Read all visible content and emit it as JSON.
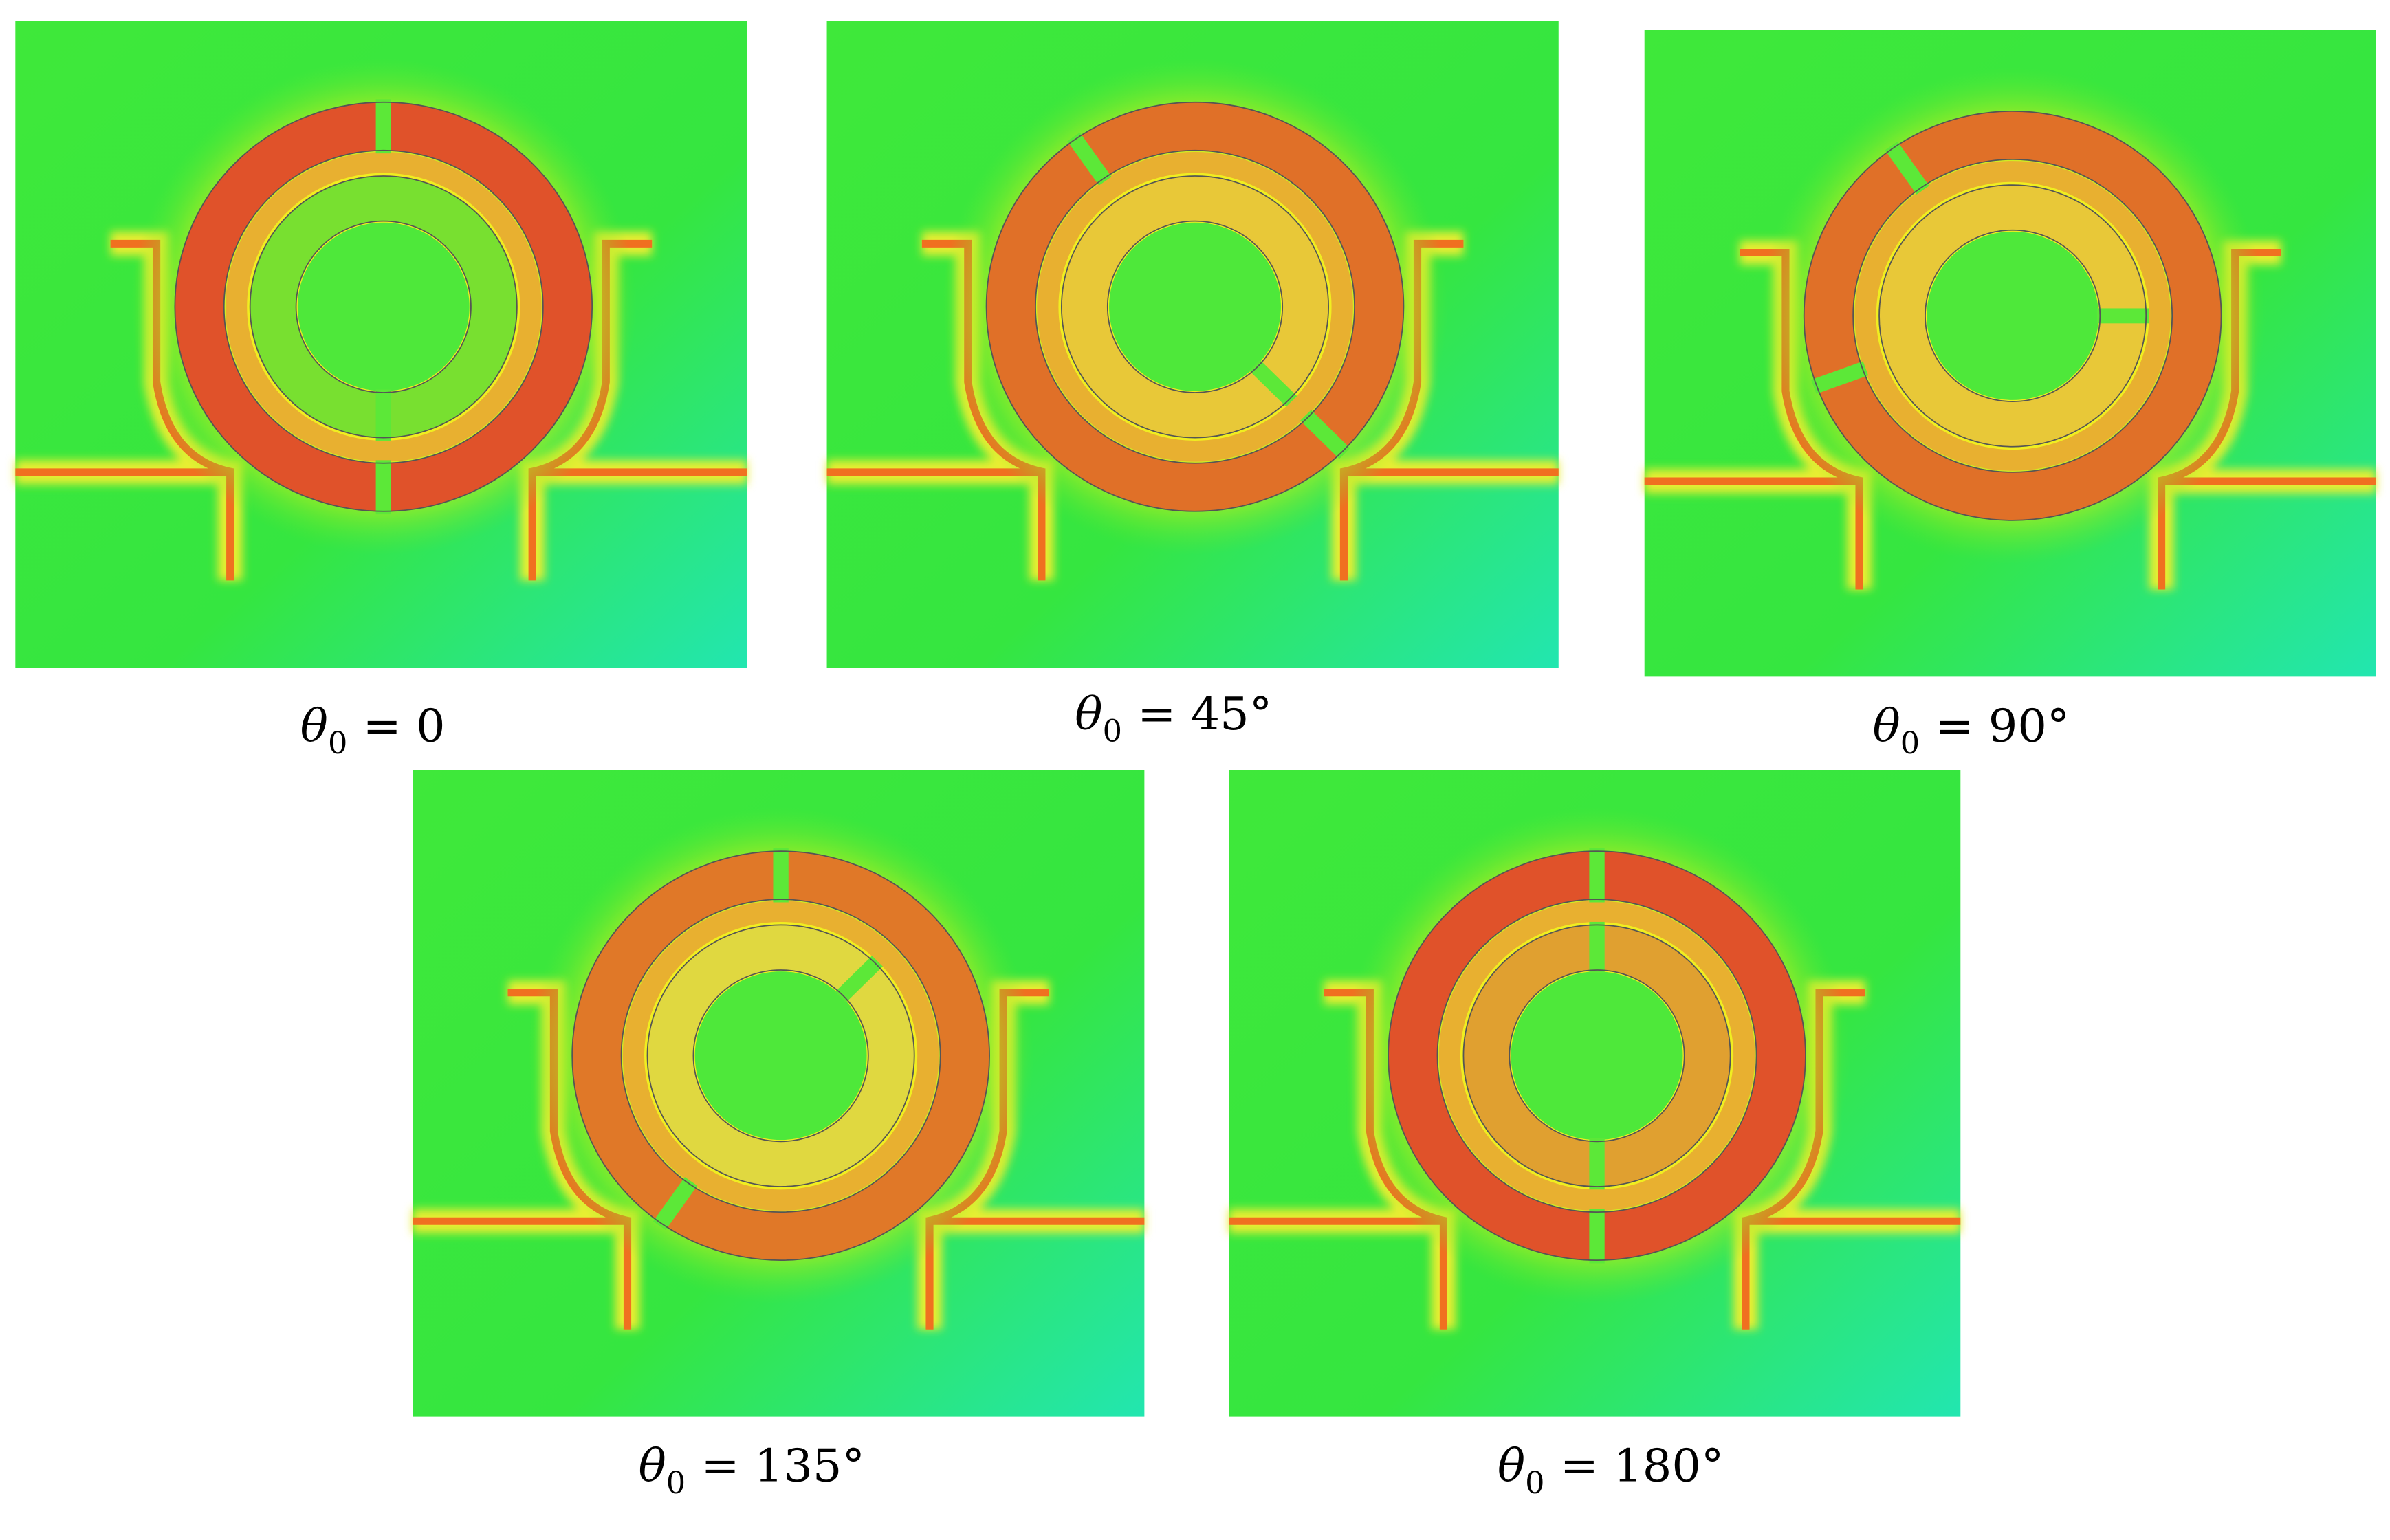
{
  "figure": {
    "panels": [
      {
        "caption": {
          "symbol": "θ",
          "subscript": "0",
          "relation": "= 0"
        }
      },
      {
        "caption": {
          "symbol": "θ",
          "subscript": "0",
          "relation": "= 45°"
        }
      },
      {
        "caption": {
          "symbol": "θ",
          "subscript": "0",
          "relation": "= 90°"
        }
      },
      {
        "caption": {
          "symbol": "θ",
          "subscript": "0",
          "relation": "= 135°"
        }
      },
      {
        "caption": {
          "symbol": "θ",
          "subscript": "0",
          "relation": "= 180°"
        }
      }
    ]
  }
}
